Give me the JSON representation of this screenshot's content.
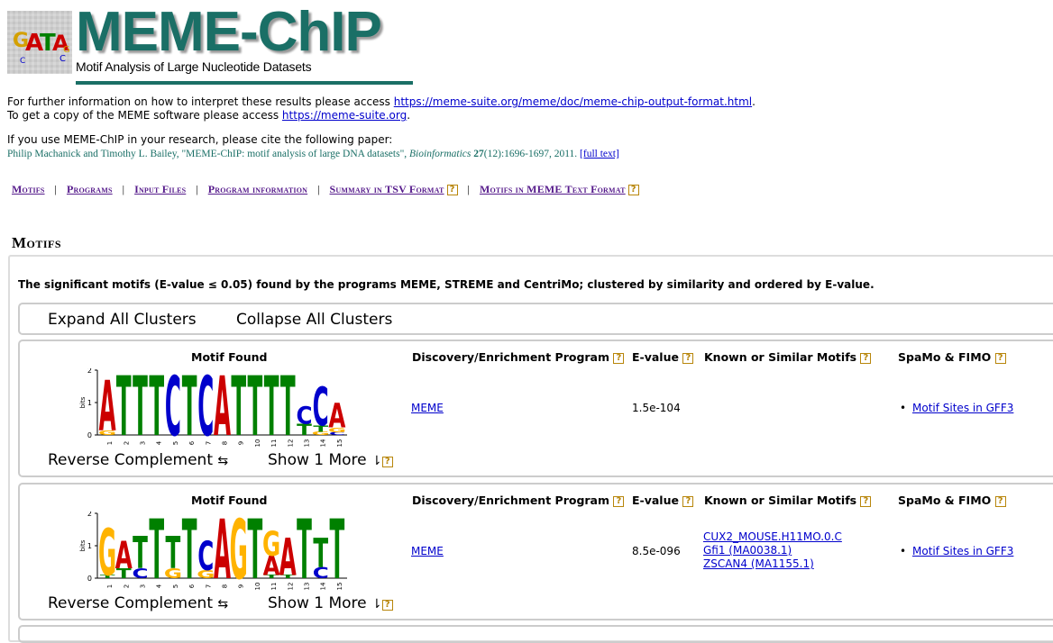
{
  "header": {
    "title": "MEME-ChIP",
    "subtitle": "Motif Analysis of Large Nucleotide Datasets",
    "logo_icon": "meme-logo-icon"
  },
  "info": {
    "line1_prefix": "For further information on how to interpret these results please access ",
    "line1_link": "https://meme-suite.org/meme/doc/meme-chip-output-format.html",
    "line1_suffix": ".",
    "line2_prefix": "To get a copy of the MEME software please access ",
    "line2_link": "https://meme-suite.org",
    "line2_suffix": ".",
    "cite_intro": "If you use MEME-ChIP in your research, please cite the following paper:",
    "cite_text": "Philip Machanick and Timothy L. Bailey, \"MEME-ChIP: motif analysis of large DNA datasets\", ",
    "cite_journal": "Bioinformatics",
    "cite_vol": "27",
    "cite_rest": "(12):1696-1697, 2011.",
    "cite_link": "[full text]"
  },
  "nav": {
    "items": [
      "Motifs",
      "Programs",
      "Input Files",
      "Program information",
      "Summary in TSV Format",
      "Motifs in MEME Text Format"
    ],
    "help": "?"
  },
  "motifs_section": {
    "title": "Motifs",
    "description": "The significant motifs (E-value ≤ 0.05) found by the programs MEME, STREME and CentriMo; clustered by similarity and ordered by E-value.",
    "expand_label": "Expand All Clusters",
    "collapse_label": "Collapse All Clusters"
  },
  "table_headers": {
    "motif_found": "Motif Found",
    "program": "Discovery/Enrichment Program",
    "evalue": "E-value",
    "known": "Known or Similar Motifs",
    "spamo": "SpaMo & FIMO"
  },
  "logo_axis": {
    "ylabel": "bits",
    "ticks": [
      "2",
      "1",
      "0"
    ],
    "positions": [
      "1",
      "2",
      "3",
      "4",
      "5",
      "6",
      "7",
      "8",
      "9",
      "10",
      "11",
      "12",
      "13",
      "14",
      "15"
    ]
  },
  "motifs": [
    {
      "program": "MEME",
      "evalue": "1.5e-104",
      "known": [],
      "fimo_link": "Motif Sites in GFF3",
      "reverse_label": "Reverse Complement",
      "reverse_icon": "swap-arrows-icon",
      "show_more_label": "Show 1 More",
      "show_more_icon": "sort-arrows-icon",
      "logo": [
        [
          [
            "A",
            1.55
          ],
          [
            "G",
            0.15
          ]
        ],
        [
          [
            "T",
            1.85
          ]
        ],
        [
          [
            "T",
            1.85
          ]
        ],
        [
          [
            "T",
            1.85
          ]
        ],
        [
          [
            "C",
            1.85
          ]
        ],
        [
          [
            "T",
            1.85
          ]
        ],
        [
          [
            "C",
            1.85
          ]
        ],
        [
          [
            "A",
            1.85
          ]
        ],
        [
          [
            "T",
            1.85
          ]
        ],
        [
          [
            "T",
            1.85
          ]
        ],
        [
          [
            "T",
            1.85
          ]
        ],
        [
          [
            "T",
            1.85
          ]
        ],
        [
          [
            "C",
            0.55
          ],
          [
            "T",
            0.35
          ]
        ],
        [
          [
            "C",
            1.2
          ],
          [
            "T",
            0.2
          ],
          [
            "G",
            0.1
          ]
        ],
        [
          [
            "A",
            0.75
          ],
          [
            "G",
            0.15
          ],
          [
            "C",
            0.08
          ]
        ]
      ]
    },
    {
      "program": "MEME",
      "evalue": "8.5e-096",
      "known": [
        "CUX2_MOUSE.H11MO.0.C",
        "Gfi1 (MA0038.1)",
        "ZSCAN4 (MA1155.1)"
      ],
      "fimo_link": "Motif Sites in GFF3",
      "reverse_label": "Reverse Complement",
      "reverse_icon": "swap-arrows-icon",
      "show_more_label": "Show 1 More",
      "show_more_icon": "sort-arrows-icon",
      "logo": [
        [
          [
            "G",
            1.45
          ],
          [
            "T",
            0.1
          ]
        ],
        [
          [
            "A",
            0.85
          ],
          [
            "T",
            0.3
          ]
        ],
        [
          [
            "T",
            1.0
          ],
          [
            "C",
            0.3
          ]
        ],
        [
          [
            "T",
            1.85
          ]
        ],
        [
          [
            "T",
            1.0
          ],
          [
            "G",
            0.3
          ]
        ],
        [
          [
            "T",
            1.85
          ]
        ],
        [
          [
            "C",
            0.9
          ],
          [
            "G",
            0.25
          ]
        ],
        [
          [
            "A",
            1.85
          ]
        ],
        [
          [
            "G",
            1.85
          ]
        ],
        [
          [
            "T",
            1.85
          ]
        ],
        [
          [
            "G",
            0.75
          ],
          [
            "A",
            0.6
          ],
          [
            "T",
            0.1
          ]
        ],
        [
          [
            "A",
            1.15
          ],
          [
            "T",
            0.1
          ]
        ],
        [
          [
            "T",
            1.85
          ]
        ],
        [
          [
            "T",
            0.9
          ],
          [
            "C",
            0.35
          ]
        ],
        [
          [
            "T",
            1.85
          ]
        ]
      ]
    }
  ],
  "colors": {
    "A": "#cc0000",
    "C": "#0000cc",
    "G": "#ffb300",
    "T": "#008000",
    "brand": "#1a6f66",
    "help": "#b8860b"
  }
}
